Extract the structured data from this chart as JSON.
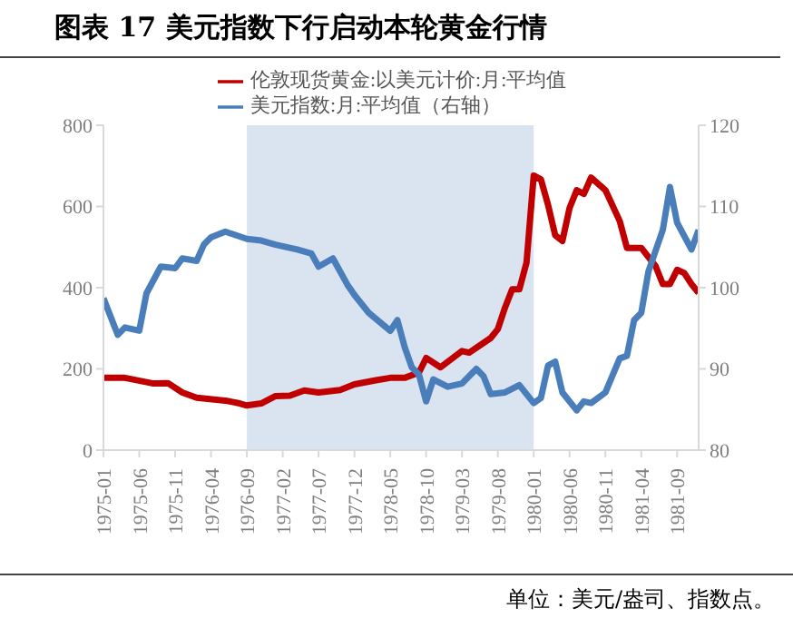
{
  "chart_data": {
    "type": "line",
    "title": "图表 17  美元指数下行启动本轮黄金行情",
    "annotations": [
      "单位：美元/盎司、指数点。"
    ],
    "xlim": [
      "1975-01",
      "1981-12"
    ],
    "xticks": [
      "1975-01",
      "1975-06",
      "1975-11",
      "1976-04",
      "1976-09",
      "1977-02",
      "1977-07",
      "1977-12",
      "1978-05",
      "1978-10",
      "1979-03",
      "1979-08",
      "1980-01",
      "1980-06",
      "1980-11",
      "1981-04",
      "1981-09"
    ],
    "ylim": [
      0,
      800
    ],
    "yticks": [
      0,
      200,
      400,
      600,
      800
    ],
    "y2lim": [
      80,
      120
    ],
    "y2ticks": [
      80,
      90,
      100,
      110,
      120
    ],
    "legend": "top",
    "grid": false,
    "marker": "none",
    "line_style": "solid",
    "bands": [
      {
        "axis": "x",
        "from": "1976-09",
        "to": "1980-01",
        "color": "#dae3f0"
      }
    ],
    "series": [
      {
        "name": "伦敦现货黄金:以美元计价:月:平均值",
        "color": "#c00000",
        "x": [
          "1975-01",
          "1975-04",
          "1975-08",
          "1975-10",
          "1975-12",
          "1976-02",
          "1976-06",
          "1976-08",
          "1976-09",
          "1976-11",
          "1977-01",
          "1977-03",
          "1977-05",
          "1977-07",
          "1977-10",
          "1977-12",
          "1978-03",
          "1978-05",
          "1978-07",
          "1978-09",
          "1978-10",
          "1978-12",
          "1979-03",
          "1979-04",
          "1979-07",
          "1979-08",
          "1979-09",
          "1979-10",
          "1979-11",
          "1979-12",
          "1980-01",
          "1980-02",
          "1980-03",
          "1980-04",
          "1980-05",
          "1980-06",
          "1980-07",
          "1980-08",
          "1980-09",
          "1980-11",
          "1981-01",
          "1981-02",
          "1981-04",
          "1981-06",
          "1981-07",
          "1981-08",
          "1981-09",
          "1981-10",
          "1981-11",
          "1981-12"
        ],
        "values": [
          178,
          178,
          164,
          165,
          142,
          129,
          122,
          115,
          110,
          115,
          133,
          134,
          147,
          142,
          148,
          162,
          172,
          178,
          178,
          191,
          227,
          204,
          244,
          240,
          276,
          298,
          351,
          396,
          396,
          462,
          676,
          667,
          604,
          529,
          515,
          596,
          640,
          631,
          671,
          640,
          564,
          498,
          498,
          453,
          409,
          409,
          444,
          436,
          409,
          387
        ]
      },
      {
        "name": "美元指数:月:平均值（右轴）",
        "color": "#4a7ebb",
        "axis": "y2",
        "x": [
          "1975-01",
          "1975-03",
          "1975-04",
          "1975-06",
          "1975-07",
          "1975-09",
          "1975-11",
          "1975-12",
          "1976-02",
          "1976-03",
          "1976-04",
          "1976-06",
          "1976-09",
          "1976-11",
          "1977-01",
          "1977-04",
          "1977-06",
          "1977-07",
          "1977-09",
          "1977-11",
          "1977-12",
          "1978-02",
          "1978-05",
          "1978-06",
          "1978-07",
          "1978-08",
          "1978-09",
          "1978-10",
          "1978-11",
          "1979-01",
          "1979-03",
          "1979-05",
          "1979-06",
          "1979-07",
          "1979-09",
          "1979-11",
          "1980-01",
          "1980-02",
          "1980-03",
          "1980-04",
          "1980-05",
          "1980-07",
          "1980-08",
          "1980-09",
          "1980-11",
          "1981-01",
          "1981-02",
          "1981-03",
          "1981-04",
          "1981-05",
          "1981-07",
          "1981-08",
          "1981-09",
          "1981-11",
          "1981-12"
        ],
        "values": [
          98.7,
          94.2,
          95.1,
          94.7,
          99.3,
          102.6,
          102.4,
          103.6,
          103.3,
          105.3,
          106.2,
          106.9,
          106.0,
          105.8,
          105.3,
          104.7,
          104.2,
          102.6,
          103.6,
          100.4,
          99.1,
          96.9,
          94.7,
          96.0,
          92.7,
          90.2,
          89.3,
          86.0,
          88.7,
          87.8,
          88.2,
          90.0,
          89.1,
          86.9,
          87.1,
          88.0,
          85.8,
          86.4,
          90.4,
          90.9,
          87.1,
          84.9,
          86.0,
          85.8,
          87.1,
          91.3,
          91.6,
          96.0,
          96.9,
          102.0,
          107.1,
          112.4,
          108.0,
          104.7,
          107.1
        ]
      }
    ]
  }
}
